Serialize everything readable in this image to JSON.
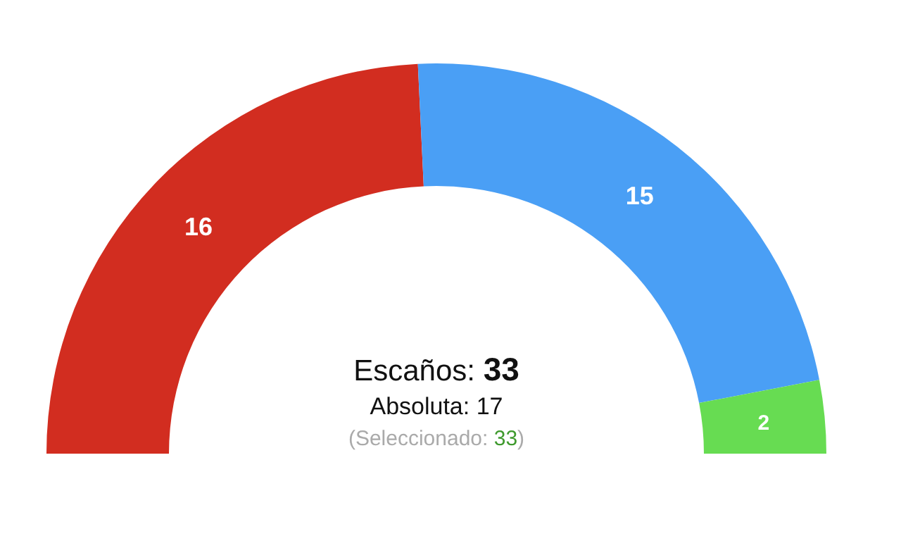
{
  "chart_data": {
    "type": "donut",
    "categories": [
      null,
      null,
      null
    ],
    "values": [
      16,
      15,
      2
    ],
    "colors": [
      "#d22d20",
      "#4a9ff5",
      "#67dc52"
    ],
    "data_labels": true,
    "annotations": [
      "Escaños: 33",
      "Absoluta: 17",
      "(Seleccionado: 33)"
    ]
  }
}
